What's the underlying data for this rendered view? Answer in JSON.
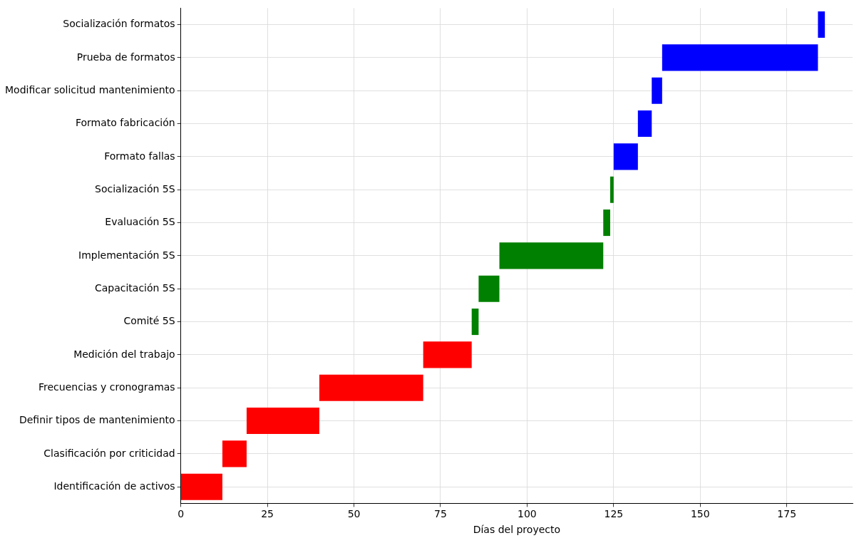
{
  "chart_data": {
    "type": "bar",
    "orientation": "horizontal",
    "xlabel": "Días del proyecto",
    "categories": [
      "Socialización formatos",
      "Prueba de formatos",
      "Modificar solicitud mantenimiento",
      "Formato fabricación",
      "Formato fallas",
      "Socialización 5S",
      "Evaluación 5S",
      "Implementación 5S",
      "Capacitación 5S",
      "Comité 5S",
      "Medición del trabajo",
      "Frecuencias y cronogramas",
      "Definir tipos de mantenimiento",
      "Clasificación por criticidad",
      "Identificación de activos"
    ],
    "base": [
      184,
      139,
      136,
      132,
      125,
      124,
      122,
      92,
      86,
      84,
      70,
      40,
      19,
      12,
      0
    ],
    "values": [
      2,
      45,
      3,
      4,
      7,
      1,
      2,
      30,
      6,
      2,
      14,
      30,
      21,
      7,
      12
    ],
    "colors": [
      "#0000ff",
      "#0000ff",
      "#0000ff",
      "#0000ff",
      "#0000ff",
      "#008000",
      "#008000",
      "#008000",
      "#008000",
      "#008000",
      "#ff0000",
      "#ff0000",
      "#ff0000",
      "#ff0000",
      "#ff0000"
    ],
    "xlim": [
      0,
      194
    ],
    "xticks": [
      0,
      25,
      50,
      75,
      100,
      125,
      150,
      175
    ],
    "grid": true
  }
}
